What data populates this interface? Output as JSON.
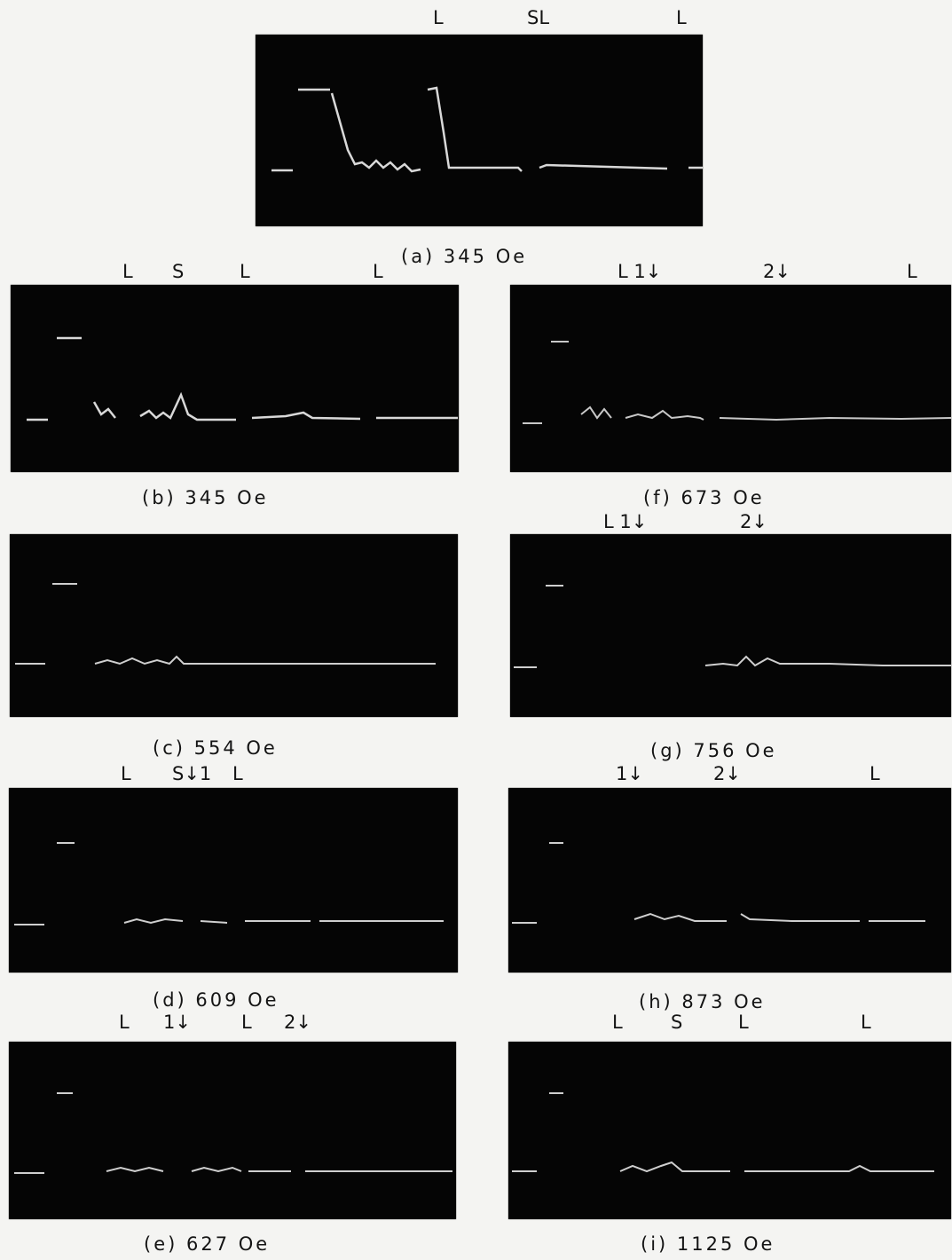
{
  "figure": {
    "panels": [
      {
        "id": "a",
        "caption": "(a) 345 Oe",
        "markers": [
          "L",
          "SL",
          "L"
        ]
      },
      {
        "id": "b",
        "caption": "(b) 345 Oe",
        "markers": [
          "L",
          "S",
          "L",
          "L"
        ]
      },
      {
        "id": "f",
        "caption": "(f) 673 Oe",
        "markers": [
          "L 1↓",
          "2↓",
          "L"
        ]
      },
      {
        "id": "c",
        "caption": "(c) 554 Oe",
        "markers": []
      },
      {
        "id": "g",
        "caption": "(g) 756 Oe",
        "markers": [
          "L 1↓",
          "2↓"
        ]
      },
      {
        "id": "d",
        "caption": "(d) 609 Oe",
        "markers": [
          "L",
          "S↓1",
          "L"
        ]
      },
      {
        "id": "h",
        "caption": "(h) 873 Oe",
        "markers": [
          "1↓",
          "2↓",
          "L"
        ]
      },
      {
        "id": "e",
        "caption": "(e) 627 Oe",
        "markers": [
          "L",
          "1↓",
          "L",
          "2↓"
        ]
      },
      {
        "id": "i",
        "caption": "(i) 1125 Oe",
        "markers": [
          "L",
          "S",
          "L",
          "L"
        ]
      }
    ]
  }
}
